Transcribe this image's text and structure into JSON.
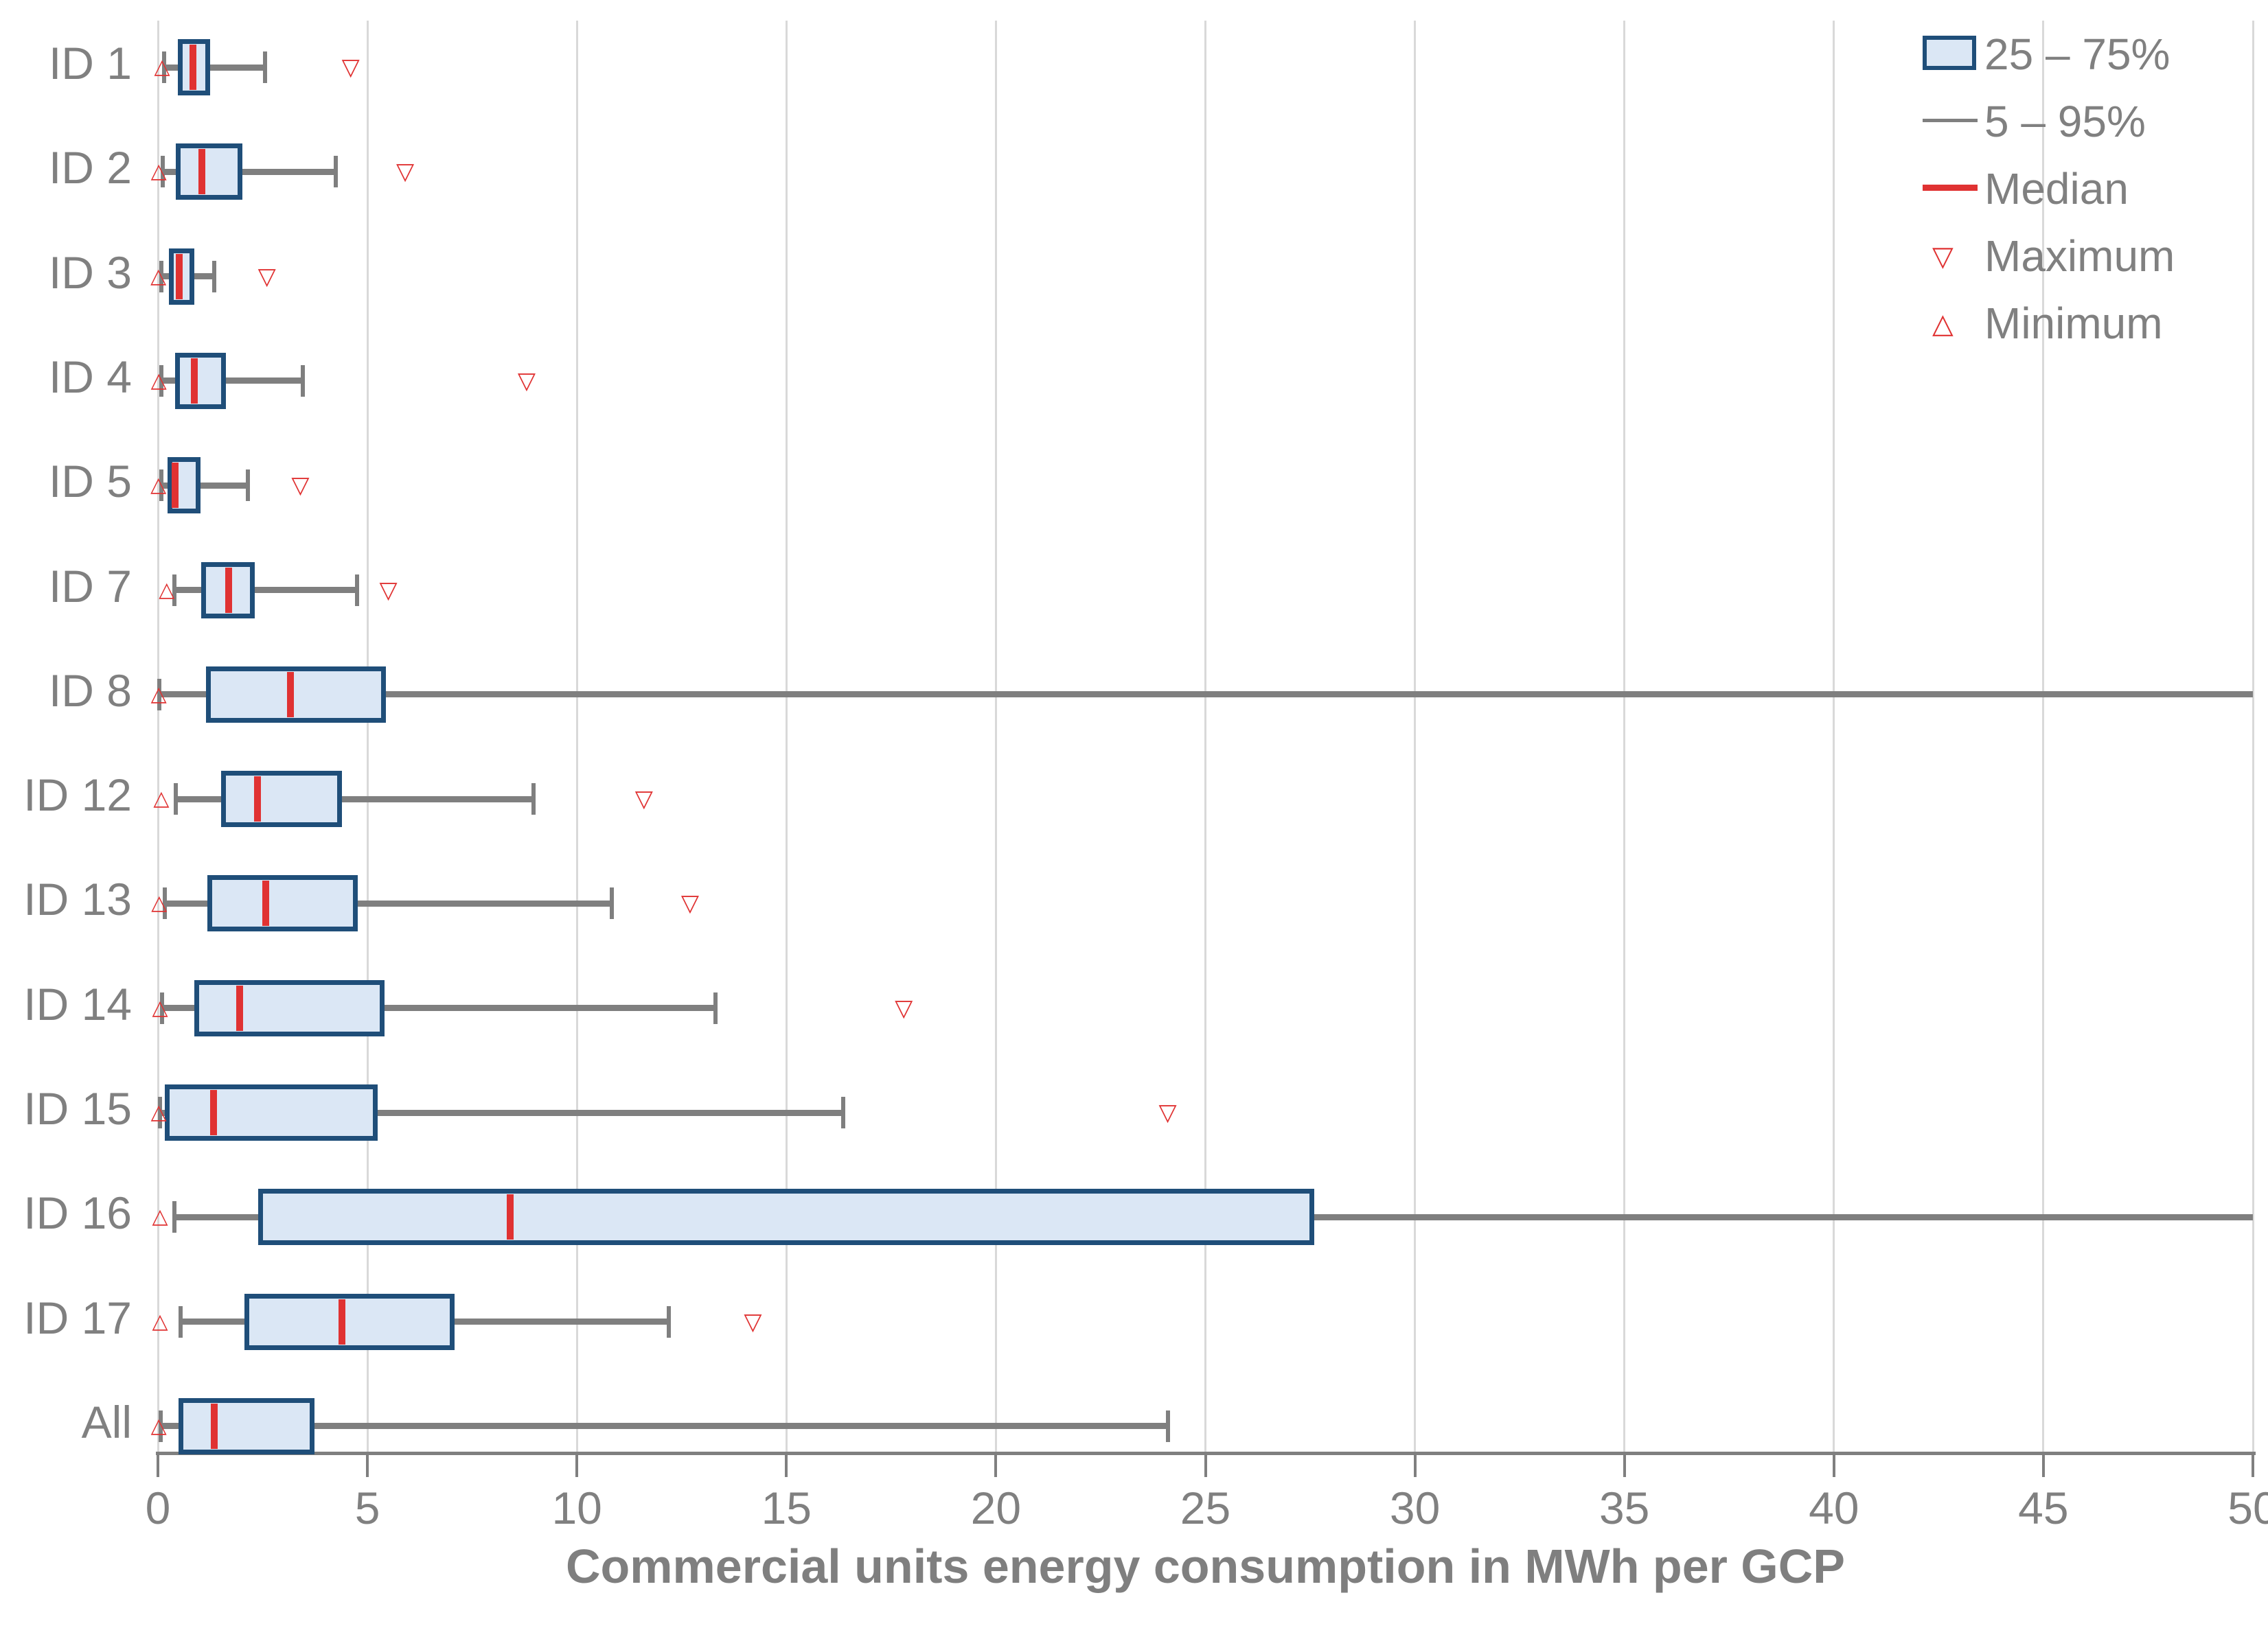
{
  "title": "",
  "chart_data": {
    "type": "boxplot-horizontal",
    "xlabel": "Commercial units energy consumption in MWh per GCP",
    "xlim": [
      0,
      50
    ],
    "x_tick_step": 5,
    "x_tick_labels": [
      "0",
      "5",
      "10",
      "15",
      "20",
      "25",
      "30",
      "35",
      "40",
      "45",
      "50"
    ],
    "grid": "vertical-only",
    "categories": [
      "ID 1",
      "ID 2",
      "ID 3",
      "ID 4",
      "ID 5",
      "ID 7",
      "ID 8",
      "ID 12",
      "ID 13",
      "ID 14",
      "ID 15",
      "ID 16",
      "ID 17",
      "All"
    ],
    "series": [
      {
        "label": "ID 1",
        "min": 0.1,
        "p5": 0.15,
        "q1": 0.48,
        "median": 0.84,
        "q3": 1.25,
        "p95": 2.56,
        "max": 4.6,
        "p95_clipped": false
      },
      {
        "label": "ID 2",
        "min": 0.02,
        "p5": 0.11,
        "q1": 0.43,
        "median": 1.05,
        "q3": 2.02,
        "p95": 4.25,
        "max": 5.9,
        "p95_clipped": false
      },
      {
        "label": "ID 3",
        "min": 0.01,
        "p5": 0.08,
        "q1": 0.27,
        "median": 0.51,
        "q3": 0.87,
        "p95": 1.35,
        "max": 2.6,
        "p95_clipped": false
      },
      {
        "label": "ID 4",
        "min": 0.02,
        "p5": 0.09,
        "q1": 0.41,
        "median": 0.87,
        "q3": 1.63,
        "p95": 3.46,
        "max": 8.8,
        "p95_clipped": false
      },
      {
        "label": "ID 5",
        "min": 0.01,
        "p5": 0.08,
        "q1": 0.23,
        "median": 0.41,
        "q3": 1.02,
        "p95": 2.14,
        "max": 3.4,
        "p95_clipped": false
      },
      {
        "label": "ID 7",
        "min": 0.21,
        "p5": 0.39,
        "q1": 1.04,
        "median": 1.69,
        "q3": 2.31,
        "p95": 4.76,
        "max": 5.5,
        "p95_clipped": false
      },
      {
        "label": "ID 8",
        "min": 0.02,
        "p5": 0.03,
        "q1": 1.15,
        "median": 3.16,
        "q3": 5.44,
        "p95": 50,
        "max": null,
        "p95_clipped": true
      },
      {
        "label": "ID 12",
        "min": 0.08,
        "p5": 0.43,
        "q1": 1.5,
        "median": 2.38,
        "q3": 4.39,
        "p95": 8.96,
        "max": 11.6,
        "p95_clipped": false
      },
      {
        "label": "ID 13",
        "min": 0.03,
        "p5": 0.16,
        "q1": 1.18,
        "median": 2.58,
        "q3": 4.77,
        "p95": 10.84,
        "max": 12.7,
        "p95_clipped": false
      },
      {
        "label": "ID 14",
        "min": 0.05,
        "p5": 0.1,
        "q1": 0.87,
        "median": 1.95,
        "q3": 5.41,
        "p95": 13.3,
        "max": 17.8,
        "p95_clipped": false
      },
      {
        "label": "ID 15",
        "min": 0.02,
        "p5": 0.05,
        "q1": 0.17,
        "median": 1.32,
        "q3": 5.24,
        "p95": 16.35,
        "max": 24.1,
        "p95_clipped": false
      },
      {
        "label": "ID 16",
        "min": 0.05,
        "p5": 0.4,
        "q1": 2.4,
        "median": 8.4,
        "q3": 27.6,
        "p95": 50,
        "max": null,
        "p95_clipped": true
      },
      {
        "label": "ID 17",
        "min": 0.05,
        "p5": 0.54,
        "q1": 2.06,
        "median": 4.39,
        "q3": 7.08,
        "p95": 12.2,
        "max": 14.2,
        "p95_clipped": false
      },
      {
        "label": "All",
        "min": 0.02,
        "p5": 0.06,
        "q1": 0.49,
        "median": 1.35,
        "q3": 3.74,
        "p95": 24.1,
        "max": null,
        "p95_clipped": false
      }
    ]
  },
  "legend": {
    "items": [
      {
        "label": "25 – 75%",
        "type": "box"
      },
      {
        "label": "5 – 95%",
        "type": "range-line"
      },
      {
        "label": "Median",
        "type": "median-line"
      },
      {
        "label": "Maximum",
        "type": "triangle-down"
      },
      {
        "label": "Minimum",
        "type": "triangle-up"
      }
    ]
  },
  "icons": {
    "triangle_down": "▽",
    "triangle_up": "△"
  },
  "colors": {
    "box_fill": "#dbe7f5",
    "box_border": "#1f4e79",
    "median": "#e03232",
    "marker": "#e03232",
    "whisker": "#7f7f7f",
    "grid": "#d9d9d9",
    "axis": "#7f7f7f",
    "text": "#808080",
    "title": "#7f7f7f"
  }
}
